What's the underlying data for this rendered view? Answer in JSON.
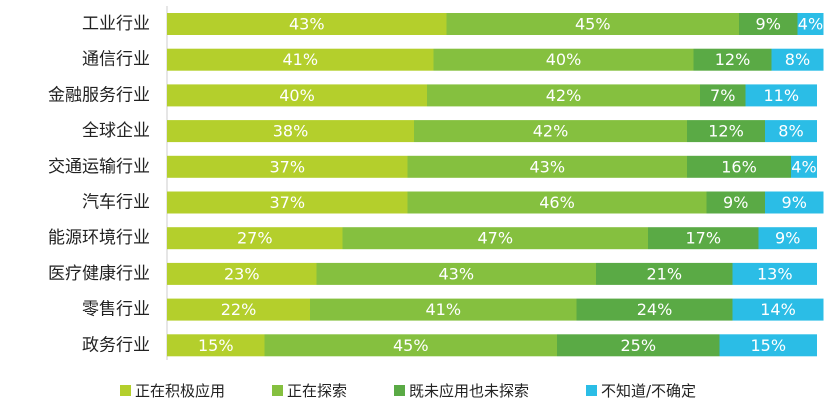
{
  "chart_data": {
    "type": "bar",
    "orientation": "horizontal",
    "stacked": true,
    "percent_stacked": true,
    "title": "",
    "xlabel": "",
    "ylabel": "",
    "xlim": [
      0,
      100
    ],
    "grid": false,
    "legend_position": "bottom",
    "categories": [
      "工业行业",
      "通信行业",
      "金融服务行业",
      "全球企业",
      "交通运输行业",
      "汽车行业",
      "能源环境行业",
      "医疗健康行业",
      "零售行业",
      "政务行业"
    ],
    "series": [
      {
        "name": "正在积极应用",
        "color": "#b4cf2c",
        "values": [
          43,
          41,
          40,
          38,
          37,
          37,
          27,
          23,
          22,
          15
        ],
        "labels": [
          "43%",
          "41%",
          "40%",
          "38%",
          "37%",
          "37%",
          "27%",
          "23%",
          "22%",
          "15%"
        ]
      },
      {
        "name": "正在探索",
        "color": "#85c03f",
        "values": [
          45,
          40,
          42,
          42,
          43,
          46,
          47,
          43,
          41,
          45
        ],
        "labels": [
          "45%",
          "40%",
          "42%",
          "42%",
          "43%",
          "46%",
          "47%",
          "43%",
          "41%",
          "45%"
        ]
      },
      {
        "name": "既未应用也未探索",
        "color": "#5aaa45",
        "values": [
          9,
          12,
          7,
          12,
          16,
          9,
          17,
          21,
          24,
          25
        ],
        "labels": [
          "9%",
          "12%",
          "7%",
          "12%",
          "16%",
          "9%",
          "17%",
          "21%",
          "24%",
          "25%"
        ]
      },
      {
        "name": "不知道/不确定",
        "color": "#2bbde6",
        "values": [
          4,
          8,
          11,
          8,
          4,
          9,
          9,
          13,
          14,
          15
        ],
        "labels": [
          "4%",
          "8%",
          "11%",
          "8%",
          "4%",
          "9%",
          "9%",
          "13%",
          "14%",
          "15%"
        ]
      }
    ]
  }
}
